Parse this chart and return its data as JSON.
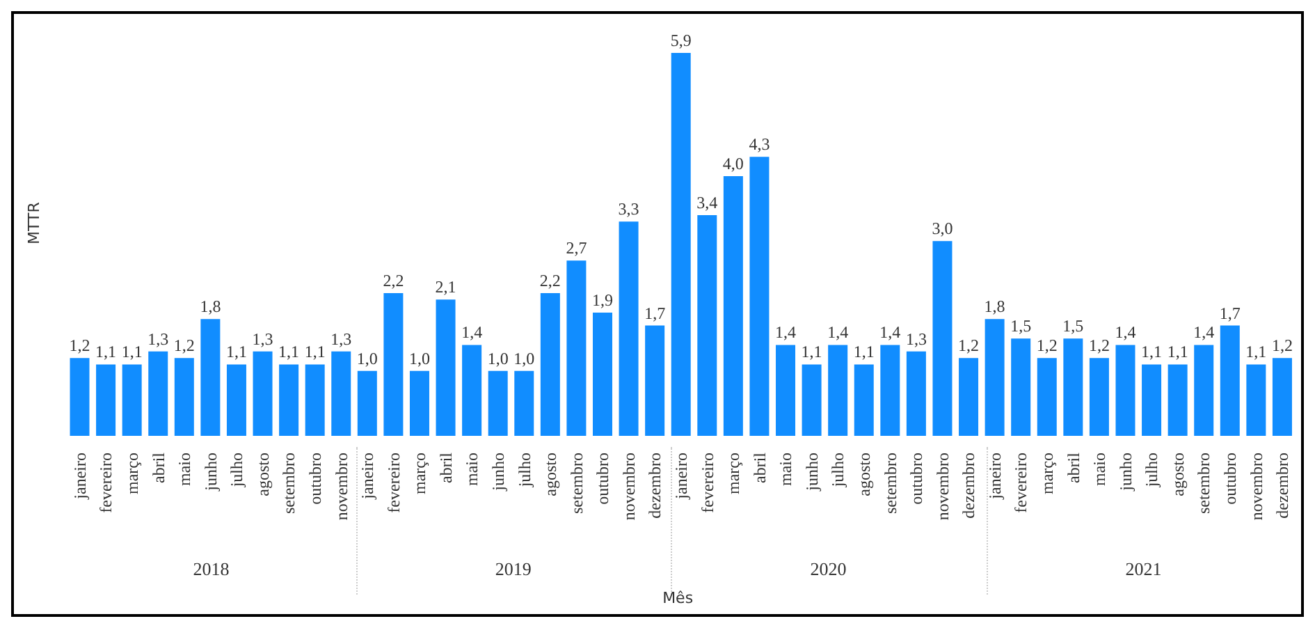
{
  "chart_data": {
    "type": "bar",
    "xlabel": "Mês",
    "ylabel": "MTTR",
    "categories": [
      "janeiro",
      "fevereiro",
      "março",
      "abril",
      "maio",
      "junho",
      "julho",
      "agosto",
      "setembro",
      "outubro",
      "novembro",
      "janeiro",
      "fevereiro",
      "março",
      "abril",
      "maio",
      "junho",
      "julho",
      "agosto",
      "setembro",
      "outubro",
      "novembro",
      "dezembro",
      "janeiro",
      "fevereiro",
      "março",
      "abril",
      "maio",
      "junho",
      "julho",
      "agosto",
      "setembro",
      "outubro",
      "novembro",
      "dezembro",
      "janeiro",
      "fevereiro",
      "março",
      "abril",
      "maio",
      "junho",
      "julho",
      "agosto",
      "setembro",
      "outubro",
      "novembro",
      "dezembro"
    ],
    "values": [
      1.2,
      1.1,
      1.1,
      1.3,
      1.2,
      1.8,
      1.1,
      1.3,
      1.1,
      1.1,
      1.3,
      1.0,
      2.2,
      1.0,
      2.1,
      1.4,
      1.0,
      1.0,
      2.2,
      2.7,
      1.9,
      3.3,
      1.7,
      5.9,
      3.4,
      4.0,
      4.3,
      1.4,
      1.1,
      1.4,
      1.1,
      1.4,
      1.3,
      3.0,
      1.2,
      1.8,
      1.5,
      1.2,
      1.5,
      1.2,
      1.4,
      1.1,
      1.1,
      1.4,
      1.7,
      1.1,
      1.2
    ],
    "value_labels": [
      "1,2",
      "1,1",
      "1,1",
      "1,3",
      "1,2",
      "1,8",
      "1,1",
      "1,3",
      "1,1",
      "1,1",
      "1,3",
      "1,0",
      "2,2",
      "1,0",
      "2,1",
      "1,4",
      "1,0",
      "1,0",
      "2,2",
      "2,7",
      "1,9",
      "3,3",
      "1,7",
      "5,9",
      "3,4",
      "4,0",
      "4,3",
      "1,4",
      "1,1",
      "1,4",
      "1,1",
      "1,4",
      "1,3",
      "3,0",
      "1,2",
      "1,8",
      "1,5",
      "1,2",
      "1,5",
      "1,2",
      "1,4",
      "1,1",
      "1,1",
      "1,4",
      "1,7",
      "1,1",
      "1,2"
    ],
    "color": "#118dff",
    "tick_labels": "x",
    "annotations": [
      "2018",
      "2019",
      "2020",
      "2021"
    ]
  }
}
